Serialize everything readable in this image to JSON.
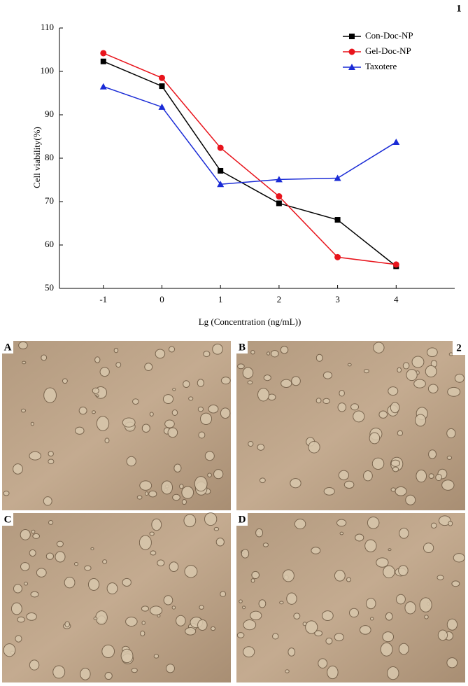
{
  "chart_data": {
    "type": "line",
    "x_label": "Lg (Concentration (ng/mL))",
    "y_label": "Cell viability(%)",
    "x": [
      -1,
      0,
      1,
      2,
      3,
      4
    ],
    "xlim": [
      -1.75,
      5
    ],
    "xticks": [
      -1,
      0,
      1,
      2,
      3,
      4
    ],
    "ylim": [
      50,
      110
    ],
    "yticks": [
      50,
      60,
      70,
      80,
      90,
      100,
      110
    ],
    "legend": "top-right",
    "series": [
      {
        "name": "Con-Doc-NP",
        "color": "#000000",
        "marker": "square",
        "values": [
          102.3,
          96.6,
          77.1,
          69.6,
          65.8,
          55.1
        ]
      },
      {
        "name": "Gel-Doc-NP",
        "color": "#e8141c",
        "marker": "circle",
        "values": [
          104.2,
          98.5,
          82.4,
          71.2,
          57.2,
          55.5
        ]
      },
      {
        "name": "Taxotere",
        "color": "#1a2bd6",
        "marker": "triangle",
        "values": [
          96.5,
          91.8,
          74.0,
          75.1,
          75.4,
          83.7
        ]
      }
    ]
  },
  "panel_number": "1",
  "photo_panels": {
    "number": "2",
    "labels": [
      "A",
      "B",
      "C",
      "D"
    ]
  }
}
